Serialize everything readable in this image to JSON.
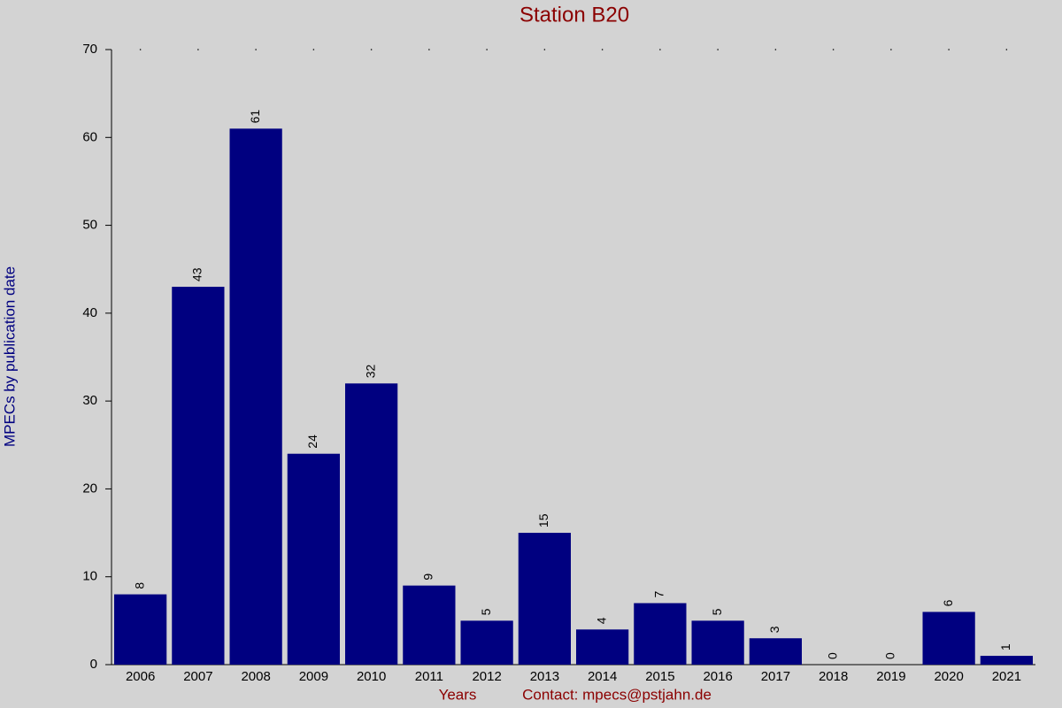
{
  "chart_data": {
    "type": "bar",
    "title": "Station B20",
    "x_label": "Years",
    "y_label": "MPECs by publication date",
    "annotation": "Contact: mpecs@pstjahn.de",
    "categories": [
      "2006",
      "2007",
      "2008",
      "2009",
      "2010",
      "2011",
      "2012",
      "2013",
      "2014",
      "2015",
      "2016",
      "2017",
      "2018",
      "2019",
      "2020",
      "2021"
    ],
    "values": [
      8,
      43,
      61,
      24,
      32,
      9,
      5,
      15,
      4,
      7,
      5,
      3,
      0,
      0,
      6,
      1
    ],
    "color": "#000080",
    "ylim": [
      0,
      70
    ],
    "yticks": [
      0,
      10,
      20,
      30,
      40,
      50,
      60,
      70
    ]
  }
}
